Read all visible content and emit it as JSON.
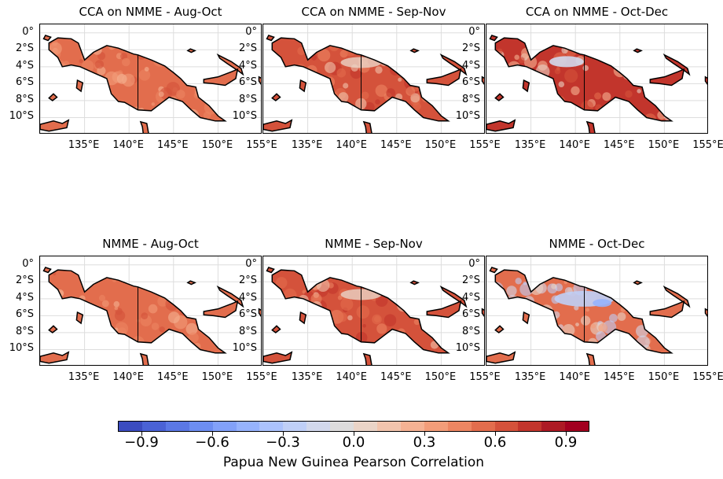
{
  "panels": [
    {
      "title": "CCA on NMME - Aug-Oct",
      "pattern": "warm-a"
    },
    {
      "title": "CCA on NMME - Sep-Nov",
      "pattern": "warm-b"
    },
    {
      "title": "CCA on NMME - Oct-Dec",
      "pattern": "warm-c"
    },
    {
      "title": "NMME - Aug-Oct",
      "pattern": "warm-a"
    },
    {
      "title": "NMME - Sep-Nov",
      "pattern": "warm-b"
    },
    {
      "title": "NMME - Oct-Dec",
      "pattern": "mixed"
    }
  ],
  "lat_labels": [
    "0°",
    "2°S",
    "4°S",
    "6°S",
    "8°S",
    "10°S"
  ],
  "lon_labels": [
    "135°E",
    "140°E",
    "145°E",
    "150°E",
    "155°E"
  ],
  "colorbar": {
    "title": "Papua New Guinea Pearson Correlation",
    "tick_labels": [
      "−0.9",
      "−0.6",
      "−0.3",
      "0.0",
      "0.3",
      "0.6",
      "0.9"
    ],
    "tick_values": [
      -0.9,
      -0.6,
      -0.3,
      0.0,
      0.3,
      0.6,
      0.9
    ],
    "range": [
      -1.0,
      1.0
    ],
    "colors": [
      "#3b4cc0",
      "#4a62d5",
      "#5b78e5",
      "#6d8ef1",
      "#82a1f9",
      "#96b3fd",
      "#abc2fc",
      "#bfcff7",
      "#d2d8ec",
      "#dddcdc",
      "#ead4c7",
      "#f2c4ad",
      "#f5b293",
      "#f39d79",
      "#ed8662",
      "#e26d4d",
      "#d4523b",
      "#c2352c",
      "#ad1a24",
      "#a2001f"
    ]
  },
  "map": {
    "ocean_color": "#ffffff",
    "coast_color": "#000000",
    "grid_color": "#dddddd"
  }
}
